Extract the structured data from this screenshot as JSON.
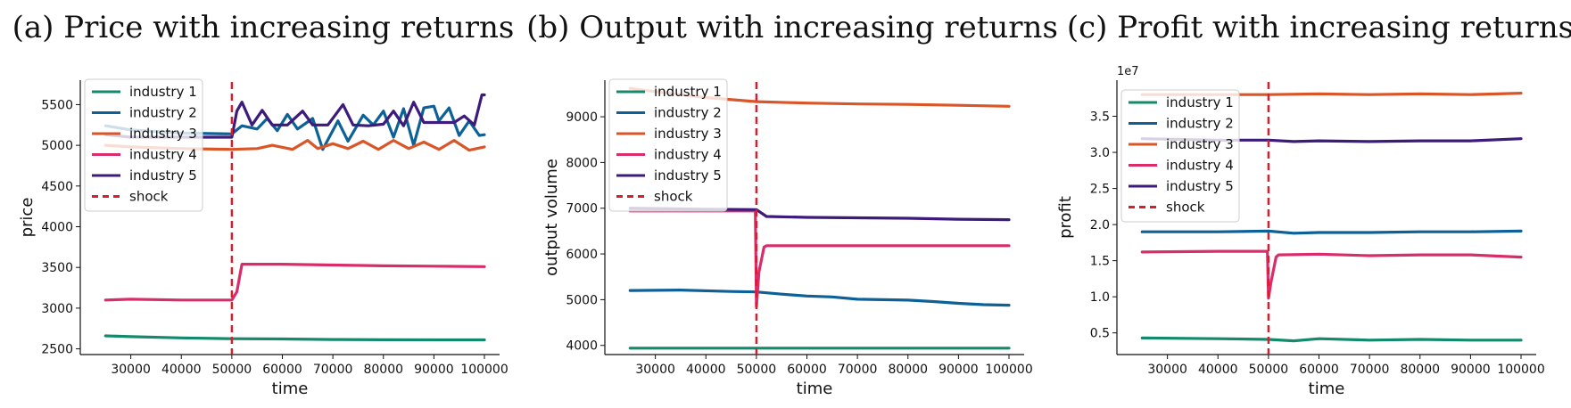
{
  "figure": {
    "panels": [
      {
        "title": "(a) Price with increasing returns",
        "xlabel": "time",
        "ylabel": "price",
        "sci_label": "",
        "xlim": [
          20000,
          103000
        ],
        "ylim": [
          2430,
          5800
        ],
        "xticks": [
          30000,
          40000,
          50000,
          60000,
          70000,
          80000,
          90000,
          100000
        ],
        "yticks": [
          2500,
          3000,
          3500,
          4000,
          4500,
          5000,
          5500
        ],
        "ytick_labels": [
          "2500",
          "3000",
          "3500",
          "4000",
          "4500",
          "5000",
          "5500"
        ]
      },
      {
        "title": "(b) Output with increasing returns",
        "xlabel": "time",
        "ylabel": "output volume",
        "sci_label": "",
        "xlim": [
          20000,
          103000
        ],
        "ylim": [
          3800,
          9800
        ],
        "xticks": [
          30000,
          40000,
          50000,
          60000,
          70000,
          80000,
          90000,
          100000
        ],
        "yticks": [
          4000,
          5000,
          6000,
          7000,
          8000,
          9000
        ],
        "ytick_labels": [
          "4000",
          "5000",
          "6000",
          "7000",
          "8000",
          "9000"
        ]
      },
      {
        "title": "(c) Profit with increasing returns",
        "xlabel": "time",
        "ylabel": "profit",
        "sci_label": "1e7",
        "xlim": [
          20000,
          103000
        ],
        "ylim": [
          0.2,
          4.0
        ],
        "xticks": [
          30000,
          40000,
          50000,
          60000,
          70000,
          80000,
          90000,
          100000
        ],
        "yticks": [
          0.5,
          1.0,
          1.5,
          2.0,
          2.5,
          3.0,
          3.5
        ],
        "ytick_labels": [
          "0.5",
          "1.0",
          "1.5",
          "2.0",
          "2.5",
          "3.0",
          "3.5"
        ]
      }
    ],
    "legend": [
      {
        "label": "industry 1",
        "color": "#138a6c",
        "style": "solid"
      },
      {
        "label": "industry 2",
        "color": "#0e6196",
        "style": "solid"
      },
      {
        "label": "industry 3",
        "color": "#d95628",
        "style": "solid"
      },
      {
        "label": "industry 4",
        "color": "#d92d6b",
        "style": "solid"
      },
      {
        "label": "industry 5",
        "color": "#3c1b7a",
        "style": "solid"
      },
      {
        "label": "shock",
        "color": "#e01a2a",
        "style": "dashed"
      }
    ]
  },
  "chart_data": [
    {
      "type": "line",
      "title": "(a) Price with increasing returns",
      "xlabel": "time",
      "ylabel": "price",
      "xlim": [
        20000,
        103000
      ],
      "ylim": [
        2430,
        5800
      ],
      "grid": false,
      "legend_position": "top-left",
      "shock_x": 50000,
      "series": [
        {
          "name": "industry 1",
          "color": "#138a6c",
          "points": [
            [
              25000,
              2660
            ],
            [
              30000,
              2650
            ],
            [
              40000,
              2635
            ],
            [
              50000,
              2625
            ],
            [
              60000,
              2622
            ],
            [
              70000,
              2615
            ],
            [
              80000,
              2612
            ],
            [
              90000,
              2610
            ],
            [
              100000,
              2610
            ]
          ]
        },
        {
          "name": "industry 2",
          "color": "#0e6196",
          "points": [
            [
              25000,
              5240
            ],
            [
              30000,
              5190
            ],
            [
              40000,
              5150
            ],
            [
              50000,
              5140
            ],
            [
              52000,
              5240
            ],
            [
              55000,
              5200
            ],
            [
              57000,
              5330
            ],
            [
              59000,
              5180
            ],
            [
              61000,
              5380
            ],
            [
              63000,
              5200
            ],
            [
              66000,
              5330
            ],
            [
              68000,
              4950
            ],
            [
              71000,
              5300
            ],
            [
              73000,
              5050
            ],
            [
              76000,
              5370
            ],
            [
              78000,
              5250
            ],
            [
              80000,
              5420
            ],
            [
              82000,
              5100
            ],
            [
              84000,
              5450
            ],
            [
              86000,
              5000
            ],
            [
              88000,
              5460
            ],
            [
              90000,
              5480
            ],
            [
              91000,
              5300
            ],
            [
              93000,
              5460
            ],
            [
              95000,
              5120
            ],
            [
              97000,
              5300
            ],
            [
              99000,
              5120
            ],
            [
              100000,
              5130
            ]
          ]
        },
        {
          "name": "industry 3",
          "color": "#d95628",
          "points": [
            [
              25000,
              5000
            ],
            [
              30000,
              4980
            ],
            [
              40000,
              4960
            ],
            [
              50000,
              4950
            ],
            [
              55000,
              4960
            ],
            [
              58000,
              5000
            ],
            [
              62000,
              4950
            ],
            [
              65000,
              5060
            ],
            [
              67000,
              4960
            ],
            [
              70000,
              5020
            ],
            [
              73000,
              4960
            ],
            [
              76000,
              5050
            ],
            [
              79000,
              4950
            ],
            [
              82000,
              5060
            ],
            [
              85000,
              4960
            ],
            [
              88000,
              5040
            ],
            [
              91000,
              4950
            ],
            [
              94000,
              5060
            ],
            [
              97000,
              4940
            ],
            [
              100000,
              4980
            ]
          ]
        },
        {
          "name": "industry 4",
          "color": "#d92d6b",
          "points": [
            [
              25000,
              3100
            ],
            [
              30000,
              3110
            ],
            [
              40000,
              3100
            ],
            [
              50000,
              3100
            ],
            [
              51000,
              3200
            ],
            [
              52000,
              3540
            ],
            [
              60000,
              3540
            ],
            [
              70000,
              3530
            ],
            [
              80000,
              3520
            ],
            [
              90000,
              3515
            ],
            [
              100000,
              3510
            ]
          ]
        },
        {
          "name": "industry 5",
          "color": "#3c1b7a",
          "points": [
            [
              25000,
              5130
            ],
            [
              30000,
              5100
            ],
            [
              40000,
              5100
            ],
            [
              50000,
              5100
            ],
            [
              51000,
              5420
            ],
            [
              52000,
              5530
            ],
            [
              54000,
              5250
            ],
            [
              56000,
              5430
            ],
            [
              58000,
              5250
            ],
            [
              61000,
              5250
            ],
            [
              64000,
              5420
            ],
            [
              66000,
              5250
            ],
            [
              69000,
              5250
            ],
            [
              72000,
              5500
            ],
            [
              74000,
              5250
            ],
            [
              77000,
              5240
            ],
            [
              80000,
              5260
            ],
            [
              82000,
              5420
            ],
            [
              84000,
              5240
            ],
            [
              86000,
              5530
            ],
            [
              88000,
              5280
            ],
            [
              91000,
              5280
            ],
            [
              94000,
              5280
            ],
            [
              96000,
              5360
            ],
            [
              98000,
              5250
            ],
            [
              99500,
              5620
            ],
            [
              100000,
              5620
            ]
          ]
        }
      ]
    },
    {
      "type": "line",
      "title": "(b) Output with increasing returns",
      "xlabel": "time",
      "ylabel": "output volume",
      "xlim": [
        20000,
        103000
      ],
      "ylim": [
        3800,
        9800
      ],
      "grid": false,
      "legend_position": "top-left",
      "shock_x": 50000,
      "series": [
        {
          "name": "industry 1",
          "color": "#138a6c",
          "points": [
            [
              25000,
              3940
            ],
            [
              50000,
              3940
            ],
            [
              75000,
              3940
            ],
            [
              100000,
              3940
            ]
          ]
        },
        {
          "name": "industry 2",
          "color": "#0e6196",
          "points": [
            [
              25000,
              5200
            ],
            [
              35000,
              5210
            ],
            [
              45000,
              5180
            ],
            [
              50000,
              5170
            ],
            [
              55000,
              5120
            ],
            [
              60000,
              5080
            ],
            [
              65000,
              5060
            ],
            [
              70000,
              5010
            ],
            [
              80000,
              4990
            ],
            [
              85000,
              4960
            ],
            [
              90000,
              4920
            ],
            [
              95000,
              4890
            ],
            [
              100000,
              4880
            ]
          ]
        },
        {
          "name": "industry 3",
          "color": "#d95628",
          "points": [
            [
              25000,
              9620
            ],
            [
              30000,
              9550
            ],
            [
              40000,
              9420
            ],
            [
              50000,
              9330
            ],
            [
              60000,
              9300
            ],
            [
              70000,
              9280
            ],
            [
              80000,
              9270
            ],
            [
              90000,
              9250
            ],
            [
              100000,
              9230
            ]
          ]
        },
        {
          "name": "industry 4",
          "color": "#d92d6b",
          "points": [
            [
              25000,
              6940
            ],
            [
              40000,
              6940
            ],
            [
              49800,
              6940
            ],
            [
              50000,
              4850
            ],
            [
              50500,
              5600
            ],
            [
              51500,
              6150
            ],
            [
              52000,
              6180
            ],
            [
              60000,
              6180
            ],
            [
              80000,
              6180
            ],
            [
              100000,
              6180
            ]
          ]
        },
        {
          "name": "industry 5",
          "color": "#3c1b7a",
          "points": [
            [
              25000,
              7000
            ],
            [
              40000,
              6980
            ],
            [
              50000,
              6970
            ],
            [
              52000,
              6820
            ],
            [
              60000,
              6800
            ],
            [
              70000,
              6790
            ],
            [
              80000,
              6780
            ],
            [
              90000,
              6760
            ],
            [
              100000,
              6750
            ]
          ]
        }
      ]
    },
    {
      "type": "line",
      "title": "(c) Profit with increasing returns",
      "xlabel": "time",
      "ylabel": "profit",
      "y_multiplier": "1e7",
      "xlim": [
        20000,
        103000
      ],
      "ylim": [
        0.2,
        4.0
      ],
      "grid": false,
      "legend_position": "top-left",
      "shock_x": 50000,
      "series": [
        {
          "name": "industry 1",
          "color": "#138a6c",
          "points": [
            [
              25000,
              0.43
            ],
            [
              40000,
              0.42
            ],
            [
              50000,
              0.41
            ],
            [
              55000,
              0.39
            ],
            [
              60000,
              0.42
            ],
            [
              70000,
              0.4
            ],
            [
              80000,
              0.41
            ],
            [
              90000,
              0.4
            ],
            [
              100000,
              0.4
            ]
          ]
        },
        {
          "name": "industry 2",
          "color": "#0e6196",
          "points": [
            [
              25000,
              1.9
            ],
            [
              40000,
              1.9
            ],
            [
              50000,
              1.91
            ],
            [
              55000,
              1.88
            ],
            [
              60000,
              1.89
            ],
            [
              70000,
              1.89
            ],
            [
              80000,
              1.9
            ],
            [
              90000,
              1.9
            ],
            [
              100000,
              1.91
            ]
          ]
        },
        {
          "name": "industry 3",
          "color": "#d95628",
          "points": [
            [
              25000,
              3.8
            ],
            [
              40000,
              3.8
            ],
            [
              50000,
              3.8
            ],
            [
              60000,
              3.81
            ],
            [
              70000,
              3.8
            ],
            [
              80000,
              3.81
            ],
            [
              90000,
              3.8
            ],
            [
              100000,
              3.82
            ]
          ]
        },
        {
          "name": "industry 4",
          "color": "#d92d6b",
          "points": [
            [
              25000,
              1.62
            ],
            [
              40000,
              1.63
            ],
            [
              49800,
              1.63
            ],
            [
              50000,
              0.98
            ],
            [
              50500,
              1.2
            ],
            [
              51500,
              1.55
            ],
            [
              52000,
              1.58
            ],
            [
              60000,
              1.59
            ],
            [
              70000,
              1.57
            ],
            [
              80000,
              1.58
            ],
            [
              90000,
              1.58
            ],
            [
              100000,
              1.55
            ]
          ]
        },
        {
          "name": "industry 5",
          "color": "#3c1b7a",
          "points": [
            [
              25000,
              3.19
            ],
            [
              40000,
              3.17
            ],
            [
              50000,
              3.17
            ],
            [
              55000,
              3.15
            ],
            [
              60000,
              3.16
            ],
            [
              70000,
              3.15
            ],
            [
              80000,
              3.16
            ],
            [
              90000,
              3.16
            ],
            [
              100000,
              3.19
            ]
          ]
        }
      ]
    }
  ]
}
